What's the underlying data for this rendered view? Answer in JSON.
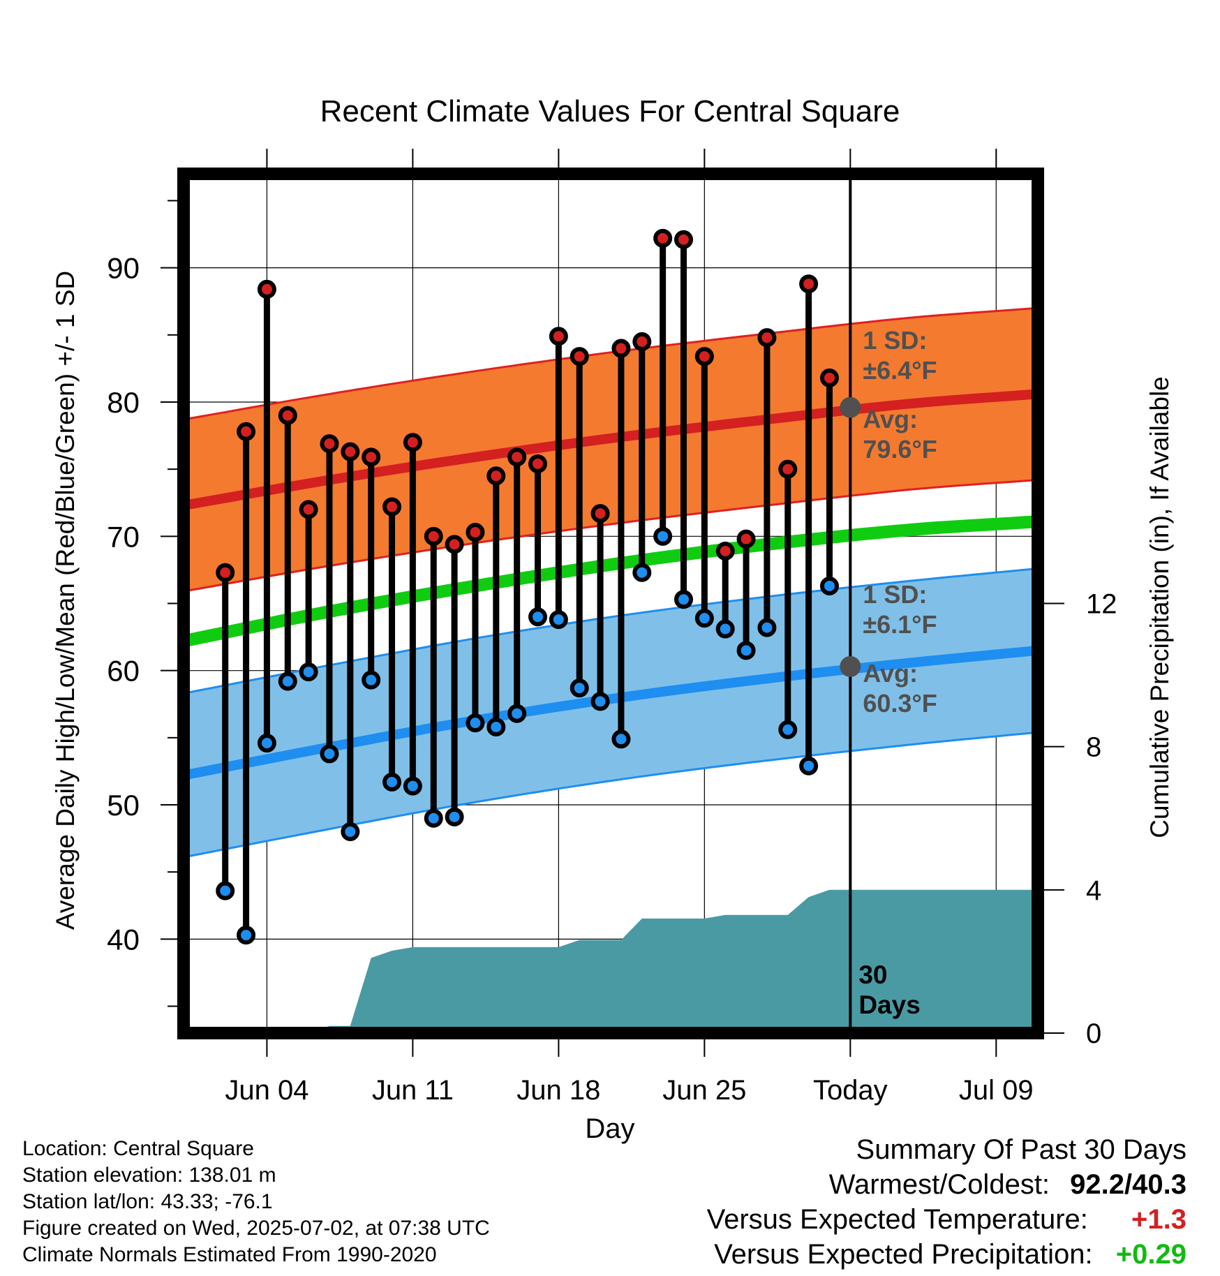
{
  "chart_data": {
    "type": "line",
    "title": "Recent Climate Values For Central Square",
    "xlabel": "Day",
    "ylabel": "Average Daily High/Low/Mean (Red/Blue/Green) +/- 1 SD",
    "y2label": "Cumulative Precipitation (in), If Available",
    "ylim": [
      33,
      97
    ],
    "y2lim": [
      0,
      24
    ],
    "x_range": [
      "2025-05-31",
      "2025-07-11"
    ],
    "today": "2025-07-02",
    "x_ticks": [
      {
        "date": "2025-06-04",
        "label": "Jun 04"
      },
      {
        "date": "2025-06-11",
        "label": "Jun 11"
      },
      {
        "date": "2025-06-18",
        "label": "Jun 18"
      },
      {
        "date": "2025-06-25",
        "label": "Jun 25"
      },
      {
        "date": "2025-07-02",
        "label": "Today"
      },
      {
        "date": "2025-07-09",
        "label": "Jul 09"
      }
    ],
    "y_ticks": [
      40,
      50,
      60,
      70,
      80,
      90
    ],
    "y2_ticks": [
      0,
      4,
      8,
      12
    ],
    "grid": true,
    "colors": {
      "high_band": "#f47a30",
      "high_avg": "#d42020",
      "high_edge": "#e02020",
      "low_band": "#80c0e8",
      "low_avg": "#1e8ef0",
      "low_edge": "#1e8ef0",
      "mean": "#10cc10",
      "precip": "#4a9aa4",
      "high_dot": "#d42020",
      "low_dot": "#1e8ef0",
      "marker": "#505050",
      "label": "#505050",
      "warm": "#d42020",
      "wet": "#10bb10"
    },
    "normals": {
      "dates": [
        "2025-05-31",
        "2025-06-07",
        "2025-06-14",
        "2025-06-21",
        "2025-06-28",
        "2025-07-05",
        "2025-07-11"
      ],
      "high_avg": [
        72.3,
        74.2,
        75.9,
        77.4,
        78.7,
        79.9,
        80.6
      ],
      "high_sd": 6.4,
      "low_avg": [
        52.2,
        54.3,
        56.3,
        58.0,
        59.4,
        60.6,
        61.5
      ],
      "low_sd": 6.1,
      "mean_avg": [
        62.2,
        64.4,
        66.3,
        68.0,
        69.4,
        70.5,
        71.1
      ]
    },
    "series": [
      {
        "name": "Daily High/Low",
        "dates": [
          "2025-06-02",
          "2025-06-03",
          "2025-06-04",
          "2025-06-05",
          "2025-06-06",
          "2025-06-07",
          "2025-06-08",
          "2025-06-09",
          "2025-06-10",
          "2025-06-11",
          "2025-06-12",
          "2025-06-13",
          "2025-06-14",
          "2025-06-15",
          "2025-06-16",
          "2025-06-17",
          "2025-06-18",
          "2025-06-19",
          "2025-06-20",
          "2025-06-21",
          "2025-06-22",
          "2025-06-23",
          "2025-06-24",
          "2025-06-25",
          "2025-06-26",
          "2025-06-27",
          "2025-06-28",
          "2025-06-29",
          "2025-06-30",
          "2025-07-01"
        ],
        "high": [
          67.3,
          77.8,
          88.4,
          79.0,
          72.0,
          76.9,
          76.3,
          75.9,
          72.2,
          77.0,
          70.0,
          69.4,
          70.3,
          74.5,
          75.9,
          75.4,
          84.9,
          83.4,
          71.7,
          84.0,
          84.5,
          92.2,
          92.1,
          83.4,
          68.9,
          69.8,
          84.8,
          75.0,
          88.8,
          81.8
        ],
        "low": [
          43.6,
          40.3,
          54.6,
          59.2,
          59.9,
          53.8,
          48.0,
          59.3,
          51.7,
          51.4,
          49.0,
          49.1,
          56.1,
          55.8,
          56.8,
          64.0,
          63.8,
          58.7,
          57.7,
          54.9,
          67.3,
          70.0,
          65.3,
          63.9,
          63.1,
          61.5,
          63.2,
          55.6,
          52.9,
          66.3
        ]
      },
      {
        "name": "Cumulative Precipitation",
        "dates": [
          "2025-06-02",
          "2025-06-03",
          "2025-06-04",
          "2025-06-05",
          "2025-06-06",
          "2025-06-07",
          "2025-06-08",
          "2025-06-09",
          "2025-06-10",
          "2025-06-11",
          "2025-06-12",
          "2025-06-17",
          "2025-06-18",
          "2025-06-19",
          "2025-06-20",
          "2025-06-21",
          "2025-06-22",
          "2025-06-23",
          "2025-06-24",
          "2025-06-25",
          "2025-06-26",
          "2025-06-27",
          "2025-06-28",
          "2025-06-29",
          "2025-06-30",
          "2025-07-01",
          "2025-07-02",
          "2025-07-11"
        ],
        "values": [
          0.0,
          0.0,
          0.0,
          0.0,
          0.0,
          0.2,
          0.2,
          2.1,
          2.3,
          2.4,
          2.4,
          2.4,
          2.4,
          2.6,
          2.6,
          2.6,
          3.2,
          3.2,
          3.2,
          3.2,
          3.3,
          3.3,
          3.3,
          3.3,
          3.8,
          4.0,
          4.0,
          4.0
        ]
      }
    ],
    "annotations": {
      "high_sd_label": "1 SD:",
      "high_sd_value": "±6.4°F",
      "high_avg_label": "Avg:",
      "high_avg_value": "79.6°F",
      "low_sd_label": "1 SD:",
      "low_sd_value": "±6.1°F",
      "low_avg_label": "Avg:",
      "low_avg_value": "60.3°F",
      "high_avg_today": 79.6,
      "low_avg_today": 60.3,
      "days_line1": "30",
      "days_line2": "Days"
    }
  },
  "info": {
    "location": "Location: Central Square",
    "elevation": "Station elevation: 138.01 m",
    "latlon": "Station lat/lon: 43.33; -76.1",
    "created": "Figure created on Wed, 2025-07-02, at 07:38 UTC",
    "normals": "Climate Normals Estimated From 1990-2020"
  },
  "summary": {
    "title": "Summary Of Past 30 Days",
    "warmest_label": "Warmest/Coldest:",
    "warmest_value": "92.2/40.3",
    "temp_label": "Versus Expected Temperature:",
    "temp_value": "+1.3",
    "precip_label": "Versus Expected Precipitation:",
    "precip_value": "+0.29"
  }
}
